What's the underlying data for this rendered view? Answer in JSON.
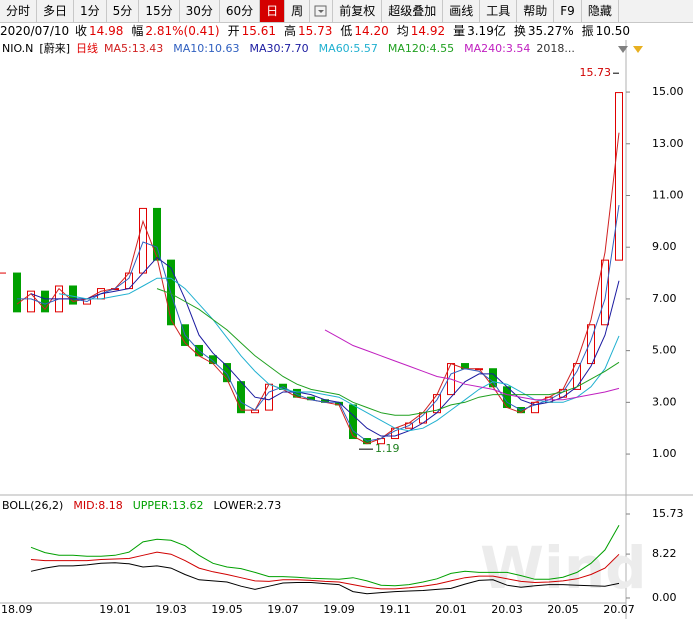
{
  "toolbar": {
    "items": [
      "分时",
      "多日",
      "1分",
      "5分",
      "15分",
      "30分",
      "60分",
      "日",
      "周",
      "前复权",
      "超级叠加",
      "画线",
      "工具",
      "帮助",
      "F9",
      "隐藏"
    ],
    "active": 7
  },
  "quote": {
    "date": "2020/07/10",
    "fields": [
      {
        "label": "收",
        "value": "14.98",
        "color": "#e00000"
      },
      {
        "label": "幅",
        "value": "2.81%(0.41)",
        "color": "#e00000"
      },
      {
        "label": "开",
        "value": "15.61",
        "color": "#e00000"
      },
      {
        "label": "高",
        "value": "15.73",
        "color": "#e00000"
      },
      {
        "label": "低",
        "value": "14.20",
        "color": "#e00000"
      },
      {
        "label": "均",
        "value": "14.92",
        "color": "#e00000"
      },
      {
        "label": "量",
        "value": "3.19亿",
        "color": "#000000"
      },
      {
        "label": "换",
        "value": "35.27%",
        "color": "#000000"
      },
      {
        "label": "振",
        "value": "10.50",
        "color": "#000000"
      }
    ]
  },
  "chart_data": [
    {
      "type": "candlestick",
      "symbol": "NIO.N",
      "name": "[蔚来]",
      "period": "日线",
      "period_color": "#e00000",
      "more": "2018...",
      "up_color": "#e00000",
      "down_color": "#00a000",
      "values": [
        8.0,
        6.5,
        7.3,
        6.5,
        7.5,
        6.8,
        7.0,
        7.4,
        7.4,
        8.0,
        10.5,
        8.5,
        6.0,
        5.2,
        4.8,
        4.5,
        3.8,
        2.6,
        2.7,
        3.7,
        3.5,
        3.2,
        3.1,
        3.0,
        2.9,
        1.6,
        1.4,
        1.6,
        2.0,
        2.2,
        2.6,
        3.3,
        4.5,
        4.3,
        4.3,
        3.6,
        2.8,
        2.6,
        3.0,
        3.2,
        3.5,
        4.5,
        6.0,
        8.5,
        14.98
      ],
      "series": [
        {
          "name": "MA5:13.43",
          "color": "#d02020",
          "values": [
            null,
            6.8,
            7.2,
            6.6,
            7.4,
            6.9,
            7.0,
            7.3,
            7.4,
            8.0,
            10.0,
            8.6,
            6.2,
            5.3,
            4.8,
            4.5,
            3.9,
            2.7,
            2.7,
            3.7,
            3.5,
            3.2,
            3.1,
            3.0,
            2.9,
            1.7,
            1.4,
            1.6,
            2.0,
            2.2,
            2.6,
            3.3,
            4.5,
            4.3,
            4.3,
            3.6,
            2.8,
            2.6,
            3.0,
            3.2,
            3.5,
            4.6,
            6.2,
            8.8,
            13.43
          ]
        },
        {
          "name": "MA10:10.63",
          "color": "#3060c0",
          "values": [
            null,
            7.0,
            7.0,
            6.8,
            7.0,
            7.0,
            6.9,
            7.2,
            7.4,
            7.8,
            9.2,
            9.0,
            7.2,
            5.6,
            5.0,
            4.6,
            4.1,
            3.0,
            2.7,
            3.4,
            3.6,
            3.3,
            3.1,
            3.0,
            3.0,
            1.9,
            1.5,
            1.6,
            1.9,
            2.1,
            2.5,
            3.1,
            4.1,
            4.3,
            4.2,
            3.8,
            3.0,
            2.7,
            2.9,
            3.1,
            3.4,
            4.2,
            5.4,
            7.0,
            10.63
          ]
        },
        {
          "name": "MA30:7.70",
          "color": "#1a1aa0",
          "values": [
            null,
            null,
            7.2,
            7.0,
            7.0,
            7.0,
            7.0,
            7.2,
            7.3,
            7.4,
            8.0,
            8.6,
            8.2,
            7.0,
            5.6,
            4.9,
            4.4,
            3.8,
            3.2,
            3.1,
            3.4,
            3.4,
            3.3,
            3.1,
            3.0,
            2.5,
            2.0,
            1.7,
            1.7,
            1.9,
            2.2,
            2.6,
            3.2,
            3.8,
            4.1,
            4.1,
            3.6,
            3.1,
            2.9,
            3.0,
            3.2,
            3.6,
            4.4,
            5.6,
            7.7
          ]
        },
        {
          "name": "MA60:5.57",
          "color": "#20b0d0",
          "values": [
            null,
            null,
            null,
            null,
            7.2,
            7.1,
            7.0,
            7.0,
            7.1,
            7.2,
            7.5,
            7.8,
            7.8,
            7.4,
            6.8,
            6.2,
            5.5,
            4.8,
            4.2,
            3.7,
            3.5,
            3.4,
            3.4,
            3.3,
            3.2,
            2.9,
            2.6,
            2.3,
            2.0,
            1.9,
            2.0,
            2.3,
            2.7,
            3.1,
            3.5,
            3.8,
            3.7,
            3.4,
            3.1,
            3.0,
            3.0,
            3.2,
            3.6,
            4.3,
            5.57
          ]
        },
        {
          "name": "MA120:4.55",
          "color": "#20a020",
          "values": [
            null,
            null,
            null,
            null,
            null,
            null,
            null,
            null,
            null,
            null,
            null,
            7.4,
            7.2,
            6.9,
            6.6,
            6.2,
            5.8,
            5.3,
            4.8,
            4.4,
            4.0,
            3.7,
            3.5,
            3.4,
            3.3,
            3.0,
            2.8,
            2.6,
            2.5,
            2.5,
            2.6,
            2.7,
            2.9,
            3.0,
            3.2,
            3.3,
            3.3,
            3.3,
            3.3,
            3.3,
            3.4,
            3.6,
            3.9,
            4.2,
            4.55
          ]
        },
        {
          "name": "MA240:3.54",
          "color": "#c020c0",
          "values": [
            null,
            null,
            null,
            null,
            null,
            null,
            null,
            null,
            null,
            null,
            null,
            null,
            null,
            null,
            null,
            null,
            null,
            null,
            null,
            null,
            null,
            null,
            null,
            5.8,
            5.5,
            5.2,
            5.0,
            4.8,
            4.6,
            4.4,
            4.2,
            4.0,
            3.9,
            3.7,
            3.6,
            3.5,
            3.3,
            3.2,
            3.1,
            3.1,
            3.1,
            3.2,
            3.3,
            3.4,
            3.54
          ]
        }
      ],
      "annotations": [
        {
          "label": "15.73",
          "value": 15.73,
          "at": "max"
        },
        {
          "label": "1.19",
          "value": 1.19,
          "at": "min"
        }
      ],
      "ylim": [
        -0.39,
        16.82
      ],
      "yticks": [
        {
          "value": 1,
          "label": "1.00"
        },
        {
          "value": 3,
          "label": "3.00"
        },
        {
          "value": 5,
          "label": "5.00"
        },
        {
          "value": 7,
          "label": "7.00"
        },
        {
          "value": 9,
          "label": "9.00"
        },
        {
          "value": 11,
          "label": "11.00"
        },
        {
          "value": 13,
          "label": "13.00"
        },
        {
          "value": 15,
          "label": "15.00"
        }
      ]
    },
    {
      "type": "line",
      "title": "BOLL(26,2)",
      "watermark": "Wind",
      "categories": [
        "18.09",
        null,
        null,
        null,
        null,
        null,
        null,
        null,
        "19.01",
        null,
        null,
        null,
        "19.03",
        null,
        null,
        null,
        "19.05",
        null,
        null,
        null,
        "19.07",
        null,
        null,
        null,
        "19.09",
        null,
        null,
        null,
        "19.11",
        null,
        null,
        null,
        "20.01",
        null,
        null,
        null,
        "20.03",
        null,
        null,
        null,
        "20.05",
        null,
        null,
        null,
        "20.07"
      ],
      "series": [
        {
          "name": "MID:8.18",
          "color": "#d00000",
          "values": [
            null,
            null,
            7.2,
            7.0,
            7.0,
            7.0,
            7.0,
            7.2,
            7.3,
            7.4,
            8.0,
            8.6,
            8.2,
            7.0,
            5.6,
            4.9,
            4.4,
            3.8,
            3.2,
            3.1,
            3.4,
            3.4,
            3.3,
            3.1,
            3.0,
            2.5,
            2.0,
            1.7,
            1.7,
            1.9,
            2.2,
            2.6,
            3.2,
            3.8,
            4.1,
            4.1,
            3.6,
            3.1,
            2.9,
            3.0,
            3.2,
            3.6,
            4.4,
            5.6,
            8.18
          ]
        },
        {
          "name": "UPPER:13.62",
          "color": "#00a000",
          "values": [
            null,
            null,
            9.5,
            8.5,
            8.0,
            8.0,
            7.8,
            7.8,
            8.0,
            8.6,
            10.5,
            11.0,
            10.8,
            9.8,
            8.0,
            6.5,
            5.8,
            5.5,
            4.8,
            4.0,
            4.0,
            3.9,
            3.7,
            3.6,
            3.5,
            3.8,
            3.2,
            2.4,
            2.3,
            2.5,
            3.0,
            3.6,
            4.6,
            5.0,
            4.8,
            4.8,
            4.8,
            4.2,
            3.5,
            3.5,
            3.9,
            4.8,
            6.5,
            9.0,
            13.62
          ]
        },
        {
          "name": "LOWER:2.73",
          "color": "#000000",
          "values": [
            null,
            null,
            5.0,
            5.6,
            6.0,
            6.0,
            6.2,
            6.5,
            6.6,
            6.4,
            5.8,
            6.0,
            5.6,
            4.4,
            3.4,
            3.2,
            3.0,
            2.2,
            1.6,
            2.2,
            2.8,
            2.9,
            2.9,
            2.7,
            2.5,
            1.2,
            0.8,
            1.0,
            1.2,
            1.3,
            1.4,
            1.6,
            1.8,
            2.6,
            3.3,
            3.4,
            2.4,
            2.0,
            2.3,
            2.5,
            2.5,
            2.4,
            2.3,
            2.2,
            2.73
          ]
        }
      ],
      "ylim": [
        -0.94,
        18.35
      ],
      "yticks": [
        {
          "value": 0,
          "label": "0.00"
        },
        {
          "value": 8.22,
          "label": "8.22"
        },
        {
          "value": 15.73,
          "label": "15.73"
        }
      ]
    }
  ]
}
